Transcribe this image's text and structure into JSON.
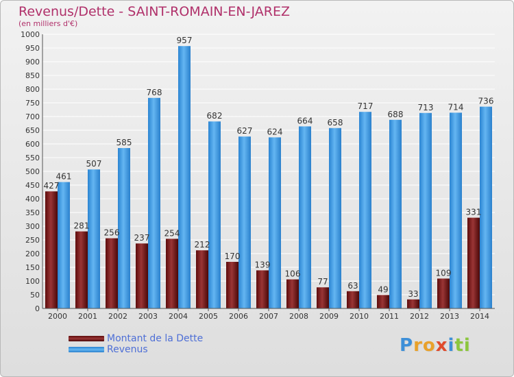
{
  "chart_data": {
    "type": "bar",
    "title": "Revenus/Dette - SAINT-ROMAIN-EN-JAREZ",
    "subtitle": "(en milliers d'€)",
    "categories": [
      "2000",
      "2001",
      "2002",
      "2003",
      "2004",
      "2005",
      "2006",
      "2007",
      "2008",
      "2009",
      "2010",
      "2011",
      "2012",
      "2013",
      "2014"
    ],
    "series": [
      {
        "name": "Montant de la Dette",
        "color": "#7a1c1c",
        "values": [
          427,
          281,
          256,
          237,
          254,
          212,
          170,
          139,
          106,
          77,
          63,
          49,
          33,
          109,
          331
        ]
      },
      {
        "name": "Revenus",
        "color": "#3b9ae6",
        "values": [
          461,
          507,
          585,
          768,
          957,
          682,
          627,
          624,
          664,
          658,
          717,
          688,
          713,
          714,
          736
        ]
      }
    ],
    "ylim": [
      0,
      1000
    ],
    "yticks": [
      0,
      50,
      100,
      150,
      200,
      250,
      300,
      350,
      400,
      450,
      500,
      550,
      600,
      650,
      700,
      750,
      800,
      850,
      900,
      950,
      1000
    ],
    "grid": true,
    "legend_position": "bottom-left",
    "colors": {
      "title": "#b0306a",
      "legend_text": "#4e6fd6",
      "grid": "#ffffff"
    }
  },
  "logo": {
    "letters": [
      {
        "ch": "P",
        "color": "#3d8fd8"
      },
      {
        "ch": "r",
        "color": "#e9a12a"
      },
      {
        "ch": "o",
        "color": "#e9a12a"
      },
      {
        "ch": "x",
        "color": "#e04b2c"
      },
      {
        "ch": "i",
        "color": "#3d8fd8"
      },
      {
        "ch": "t",
        "color": "#8cc63e"
      },
      {
        "ch": "i",
        "color": "#8cc63e"
      }
    ]
  }
}
